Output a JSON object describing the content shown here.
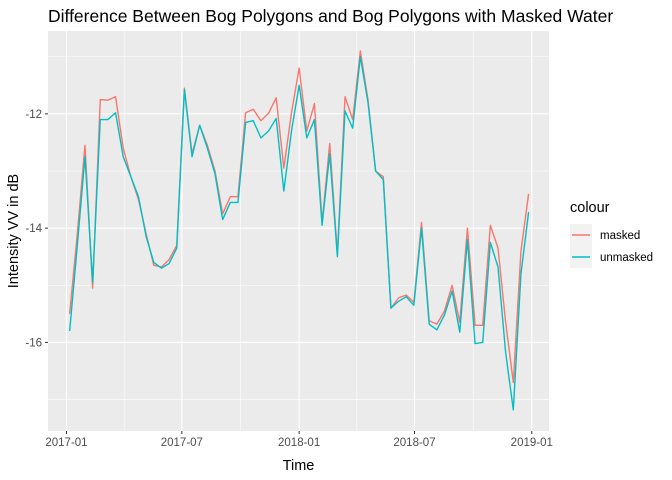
{
  "chart_data": {
    "type": "line",
    "title": "Difference Between Bog Polygons and Bog Polygons with Masked Water",
    "xlabel": "Time",
    "ylabel": "Intensity VV in dB",
    "x_ticks": [
      "2017-01",
      "2017-07",
      "2018-01",
      "2018-07",
      "2019-01"
    ],
    "x_range": [
      "2016-12-03",
      "2019-01-28"
    ],
    "ylim": [
      -17.55,
      -10.55
    ],
    "y_ticks": [
      -12,
      -14,
      -16
    ],
    "y_tick_labels": [
      "-12",
      "-14",
      "-16"
    ],
    "grid": true,
    "background": "#ebebeb",
    "legend": {
      "title": "colour",
      "position": "right",
      "entries": [
        "masked",
        "unmasked"
      ]
    },
    "x": [
      "2017-01-06",
      "2017-01-18",
      "2017-01-30",
      "2017-02-11",
      "2017-02-23",
      "2017-03-07",
      "2017-03-19",
      "2017-03-31",
      "2017-04-12",
      "2017-04-24",
      "2017-05-06",
      "2017-05-18",
      "2017-05-30",
      "2017-06-11",
      "2017-06-23",
      "2017-07-05",
      "2017-07-17",
      "2017-07-29",
      "2017-08-10",
      "2017-08-22",
      "2017-09-03",
      "2017-09-15",
      "2017-09-27",
      "2017-10-09",
      "2017-10-21",
      "2017-11-02",
      "2017-11-14",
      "2017-11-26",
      "2017-12-08",
      "2017-12-20",
      "2018-01-01",
      "2018-01-13",
      "2018-01-25",
      "2018-02-06",
      "2018-02-18",
      "2018-03-02",
      "2018-03-14",
      "2018-03-26",
      "2018-04-07",
      "2018-04-19",
      "2018-05-01",
      "2018-05-13",
      "2018-05-25",
      "2018-06-06",
      "2018-06-18",
      "2018-06-30",
      "2018-07-12",
      "2018-07-24",
      "2018-08-05",
      "2018-08-17",
      "2018-08-29",
      "2018-09-10",
      "2018-09-22",
      "2018-10-04",
      "2018-10-16",
      "2018-10-28",
      "2018-11-09",
      "2018-11-21",
      "2018-12-03",
      "2018-12-15",
      "2018-12-27"
    ],
    "series": [
      {
        "name": "masked",
        "color": "#f8766d",
        "values": [
          -15.5,
          -14.1,
          -12.55,
          -15.05,
          -11.75,
          -11.76,
          -11.7,
          -12.6,
          -13.1,
          -13.5,
          -14.1,
          -14.65,
          -14.68,
          -14.55,
          -14.3,
          -11.55,
          -12.7,
          -12.2,
          -12.55,
          -13.0,
          -13.75,
          -13.45,
          -13.45,
          -11.98,
          -11.92,
          -12.12,
          -11.99,
          -11.72,
          -12.95,
          -11.98,
          -11.2,
          -12.3,
          -11.82,
          -13.9,
          -12.52,
          -14.45,
          -11.7,
          -12.1,
          -10.9,
          -11.75,
          -13.0,
          -13.1,
          -15.4,
          -15.22,
          -15.17,
          -15.3,
          -13.9,
          -15.62,
          -15.68,
          -15.45,
          -15.0,
          -15.65,
          -14.0,
          -15.7,
          -15.7,
          -13.95,
          -14.35,
          -15.65,
          -16.7,
          -14.4,
          -13.4
        ]
      },
      {
        "name": "unmasked",
        "color": "#00bfc4",
        "values": [
          -15.8,
          -14.3,
          -12.75,
          -14.95,
          -12.1,
          -12.1,
          -11.98,
          -12.75,
          -13.1,
          -13.45,
          -14.15,
          -14.6,
          -14.7,
          -14.62,
          -14.35,
          -11.58,
          -12.75,
          -12.2,
          -12.6,
          -13.05,
          -13.85,
          -13.55,
          -13.55,
          -12.15,
          -12.12,
          -12.42,
          -12.3,
          -12.08,
          -13.35,
          -12.3,
          -11.5,
          -12.42,
          -12.1,
          -13.95,
          -12.7,
          -14.5,
          -11.95,
          -12.25,
          -11.0,
          -11.8,
          -13.0,
          -13.15,
          -15.4,
          -15.28,
          -15.2,
          -15.35,
          -14.0,
          -15.68,
          -15.78,
          -15.52,
          -15.1,
          -15.82,
          -14.2,
          -16.02,
          -16.0,
          -14.25,
          -14.68,
          -16.18,
          -17.18,
          -14.8,
          -13.72
        ]
      }
    ]
  }
}
